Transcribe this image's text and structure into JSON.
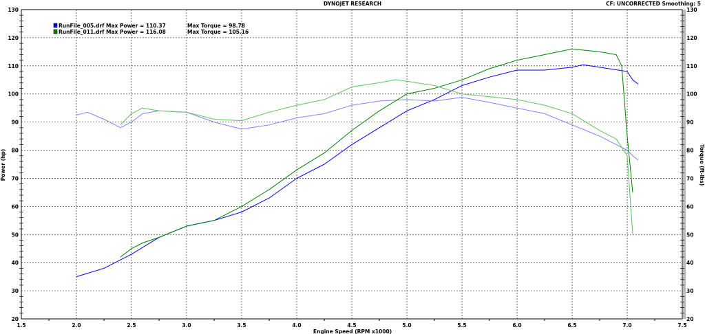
{
  "chart_data": {
    "type": "line",
    "title": "DYNOJET RESEARCH",
    "subtitle": "CF: UNCORRECTED  Smoothing: 5",
    "xlabel": "Engine Speed (RPM x1000)",
    "ylabel": "Power (hp)",
    "y2label": "Torque (ft-lbs)",
    "xlim": [
      1.5,
      7.5
    ],
    "ylim": [
      20,
      130
    ],
    "y2lim": [
      20,
      130
    ],
    "grid": true,
    "legend_placement": "top-left",
    "x_ticks": [
      "1.5",
      "2.0",
      "2.5",
      "3.0",
      "3.5",
      "4.0",
      "4.5",
      "5.0",
      "5.5",
      "6.0",
      "6.5",
      "7.0",
      "7.5"
    ],
    "y_ticks": [
      "20",
      "30",
      "40",
      "50",
      "60",
      "70",
      "80",
      "90",
      "100",
      "110",
      "120",
      "130"
    ],
    "legend": [
      {
        "file": "RunFile_005.drf",
        "text": "RunFile_005.drf Max Power = 110.37",
        "torque_text": "Max Torque = 98.78",
        "color": "#0000ee"
      },
      {
        "file": "RunFile_011.drf",
        "text": "RunFile_011.drf Max Power = 116.08",
        "torque_text": "Max Torque = 105.16",
        "color": "#008000"
      }
    ],
    "series": [
      {
        "name": "RunFile_005.drf",
        "quantity": "power",
        "color": "#0000ee",
        "x": [
          2.0,
          2.25,
          2.5,
          2.75,
          3.0,
          3.25,
          3.5,
          3.75,
          4.0,
          4.25,
          4.5,
          4.75,
          5.0,
          5.25,
          5.5,
          5.75,
          6.0,
          6.25,
          6.5,
          6.6,
          6.75,
          7.0,
          7.05,
          7.1
        ],
        "y": [
          35,
          38,
          43,
          49,
          53,
          55,
          58,
          63,
          70,
          75,
          82,
          88,
          94,
          98,
          103,
          106,
          108.5,
          108.5,
          109.5,
          110.4,
          109.5,
          108,
          105,
          103.5
        ]
      },
      {
        "name": "RunFile_005.drf",
        "quantity": "torque",
        "color": "#8080ff",
        "x": [
          2.0,
          2.1,
          2.25,
          2.4,
          2.5,
          2.6,
          2.75,
          3.0,
          3.25,
          3.5,
          3.75,
          4.0,
          4.25,
          4.5,
          4.75,
          5.0,
          5.25,
          5.5,
          5.75,
          6.0,
          6.25,
          6.5,
          6.75,
          7.0,
          7.05,
          7.1
        ],
        "y": [
          92.5,
          93.5,
          91,
          88,
          90,
          93,
          94,
          93.5,
          90,
          87.5,
          89,
          91.5,
          93,
          96,
          97.5,
          98,
          97.5,
          98.8,
          97,
          95,
          93,
          89,
          85,
          80,
          78,
          76.5
        ]
      },
      {
        "name": "RunFile_011.drf",
        "quantity": "power",
        "color": "#008000",
        "x": [
          2.4,
          2.5,
          2.6,
          2.75,
          3.0,
          3.25,
          3.5,
          3.75,
          4.0,
          4.25,
          4.5,
          4.75,
          5.0,
          5.25,
          5.5,
          5.75,
          6.0,
          6.25,
          6.5,
          6.75,
          6.9,
          6.95,
          7.0,
          7.05
        ],
        "y": [
          42,
          45,
          47,
          49,
          53,
          55,
          60,
          66,
          73,
          79,
          87,
          94,
          100,
          102,
          105,
          109,
          112,
          114,
          116,
          115,
          114,
          110,
          85,
          65
        ]
      },
      {
        "name": "RunFile_011.drf",
        "quantity": "torque",
        "color": "#60c060",
        "x": [
          2.4,
          2.5,
          2.6,
          2.75,
          3.0,
          3.25,
          3.5,
          3.75,
          4.0,
          4.25,
          4.5,
          4.75,
          4.9,
          5.0,
          5.25,
          5.5,
          5.75,
          6.0,
          6.25,
          6.5,
          6.75,
          6.9,
          7.0,
          7.05
        ],
        "y": [
          89,
          93,
          95,
          94,
          93.5,
          91,
          90.5,
          93.5,
          96,
          98,
          102.5,
          104,
          105.1,
          104.5,
          103,
          100,
          99,
          98,
          96,
          93,
          87,
          84,
          78,
          50
        ]
      }
    ]
  }
}
